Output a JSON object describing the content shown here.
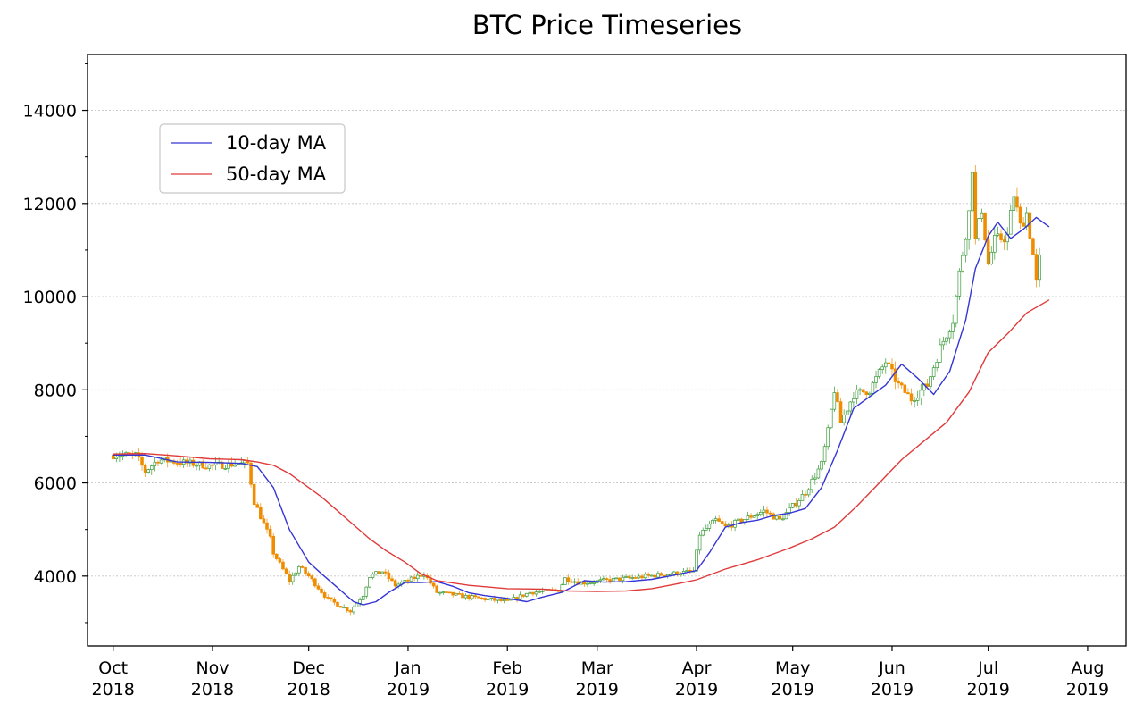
{
  "chart_data": {
    "type": "candlestick",
    "title": "BTC Price Timeseries",
    "xlabel": "",
    "ylabel": "",
    "xlim": [
      "2018-09-23",
      "2019-08-13"
    ],
    "ylim": [
      2500,
      15200
    ],
    "grid": {
      "y": true,
      "x": false
    },
    "legend_position": "upper-left",
    "colors": {
      "up": "#3a9a3a",
      "down": "#f08c00",
      "ma10": "#3535d6",
      "ma50": "#e03a3a"
    },
    "x_ticks": [
      {
        "date": "2018-10-01",
        "label1": "Oct",
        "label2": "2018"
      },
      {
        "date": "2018-11-01",
        "label1": "Nov",
        "label2": "2018"
      },
      {
        "date": "2018-12-01",
        "label1": "Dec",
        "label2": "2018"
      },
      {
        "date": "2019-01-01",
        "label1": "Jan",
        "label2": "2019"
      },
      {
        "date": "2019-02-01",
        "label1": "Feb",
        "label2": "2019"
      },
      {
        "date": "2019-03-01",
        "label1": "Mar",
        "label2": "2019"
      },
      {
        "date": "2019-04-01",
        "label1": "Apr",
        "label2": "2019"
      },
      {
        "date": "2019-05-01",
        "label1": "May",
        "label2": "2019"
      },
      {
        "date": "2019-06-01",
        "label1": "Jun",
        "label2": "2019"
      },
      {
        "date": "2019-07-01",
        "label1": "Jul",
        "label2": "2019"
      },
      {
        "date": "2019-08-01",
        "label1": "Aug",
        "label2": "2019"
      }
    ],
    "y_ticks": [
      {
        "value": 4000,
        "label": "4000"
      },
      {
        "value": 6000,
        "label": "6000"
      },
      {
        "value": 8000,
        "label": "8000"
      },
      {
        "value": 10000,
        "label": "10000"
      },
      {
        "value": 12000,
        "label": "12000"
      },
      {
        "value": 14000,
        "label": "14000"
      }
    ],
    "series": [
      {
        "name": "10-day MA",
        "color": "#3535d6",
        "points": [
          [
            "2018-10-01",
            6600
          ],
          [
            "2018-10-11",
            6600
          ],
          [
            "2018-10-21",
            6450
          ],
          [
            "2018-10-31",
            6440
          ],
          [
            "2018-11-10",
            6420
          ],
          [
            "2018-11-15",
            6350
          ],
          [
            "2018-11-20",
            5900
          ],
          [
            "2018-11-25",
            5000
          ],
          [
            "2018-12-01",
            4300
          ],
          [
            "2018-12-05",
            4050
          ],
          [
            "2018-12-10",
            3750
          ],
          [
            "2018-12-15",
            3450
          ],
          [
            "2018-12-18",
            3380
          ],
          [
            "2018-12-22",
            3450
          ],
          [
            "2018-12-26",
            3650
          ],
          [
            "2018-12-31",
            3860
          ],
          [
            "2019-01-05",
            3860
          ],
          [
            "2019-01-10",
            3880
          ],
          [
            "2019-01-15",
            3780
          ],
          [
            "2019-01-20",
            3640
          ],
          [
            "2019-01-25",
            3580
          ],
          [
            "2019-02-01",
            3520
          ],
          [
            "2019-02-07",
            3450
          ],
          [
            "2019-02-12",
            3550
          ],
          [
            "2019-02-18",
            3650
          ],
          [
            "2019-02-25",
            3900
          ],
          [
            "2019-03-03",
            3870
          ],
          [
            "2019-03-10",
            3880
          ],
          [
            "2019-03-18",
            3930
          ],
          [
            "2019-03-25",
            4020
          ],
          [
            "2019-04-01",
            4120
          ],
          [
            "2019-04-05",
            4500
          ],
          [
            "2019-04-10",
            5050
          ],
          [
            "2019-04-15",
            5150
          ],
          [
            "2019-04-20",
            5200
          ],
          [
            "2019-04-25",
            5300
          ],
          [
            "2019-04-30",
            5350
          ],
          [
            "2019-05-05",
            5450
          ],
          [
            "2019-05-10",
            5900
          ],
          [
            "2019-05-15",
            6700
          ],
          [
            "2019-05-20",
            7600
          ],
          [
            "2019-05-25",
            7850
          ],
          [
            "2019-05-30",
            8100
          ],
          [
            "2019-06-04",
            8550
          ],
          [
            "2019-06-09",
            8250
          ],
          [
            "2019-06-14",
            7900
          ],
          [
            "2019-06-19",
            8400
          ],
          [
            "2019-06-24",
            9500
          ],
          [
            "2019-06-27",
            10600
          ],
          [
            "2019-07-01",
            11300
          ],
          [
            "2019-07-04",
            11600
          ],
          [
            "2019-07-08",
            11250
          ],
          [
            "2019-07-12",
            11450
          ],
          [
            "2019-07-16",
            11700
          ],
          [
            "2019-07-20",
            11500
          ]
        ]
      },
      {
        "name": "50-day MA",
        "color": "#e03a3a",
        "points": [
          [
            "2018-10-01",
            6620
          ],
          [
            "2018-10-11",
            6630
          ],
          [
            "2018-10-21",
            6580
          ],
          [
            "2018-10-31",
            6520
          ],
          [
            "2018-11-10",
            6500
          ],
          [
            "2018-11-15",
            6450
          ],
          [
            "2018-11-20",
            6380
          ],
          [
            "2018-11-25",
            6200
          ],
          [
            "2018-12-01",
            5900
          ],
          [
            "2018-12-05",
            5700
          ],
          [
            "2018-12-10",
            5400
          ],
          [
            "2018-12-15",
            5100
          ],
          [
            "2018-12-20",
            4800
          ],
          [
            "2018-12-25",
            4550
          ],
          [
            "2018-12-31",
            4300
          ],
          [
            "2019-01-05",
            4050
          ],
          [
            "2019-01-10",
            3900
          ],
          [
            "2019-01-20",
            3800
          ],
          [
            "2019-02-01",
            3730
          ],
          [
            "2019-02-12",
            3720
          ],
          [
            "2019-02-20",
            3680
          ],
          [
            "2019-03-01",
            3670
          ],
          [
            "2019-03-10",
            3680
          ],
          [
            "2019-03-18",
            3730
          ],
          [
            "2019-03-25",
            3820
          ],
          [
            "2019-04-01",
            3920
          ],
          [
            "2019-04-10",
            4150
          ],
          [
            "2019-04-20",
            4350
          ],
          [
            "2019-04-30",
            4600
          ],
          [
            "2019-05-07",
            4800
          ],
          [
            "2019-05-14",
            5050
          ],
          [
            "2019-05-21",
            5500
          ],
          [
            "2019-05-28",
            6000
          ],
          [
            "2019-06-04",
            6500
          ],
          [
            "2019-06-11",
            6900
          ],
          [
            "2019-06-18",
            7300
          ],
          [
            "2019-06-25",
            7950
          ],
          [
            "2019-07-01",
            8800
          ],
          [
            "2019-07-07",
            9200
          ],
          [
            "2019-07-13",
            9650
          ],
          [
            "2019-07-20",
            9930
          ]
        ]
      }
    ],
    "candles_segments": [
      [
        "2018-10-01",
        6600
      ],
      [
        "2018-10-08",
        6600
      ],
      [
        "2018-10-11",
        6250
      ],
      [
        "2018-10-15",
        6500
      ],
      [
        "2018-10-31",
        6370
      ],
      [
        "2018-11-12",
        6420
      ],
      [
        "2018-11-14",
        5600
      ],
      [
        "2018-11-19",
        4800
      ],
      [
        "2018-11-20",
        4500
      ],
      [
        "2018-11-25",
        3900
      ],
      [
        "2018-11-28",
        4200
      ],
      [
        "2018-12-01",
        4000
      ],
      [
        "2018-12-07",
        3500
      ],
      [
        "2018-12-14",
        3250
      ],
      [
        "2018-12-18",
        3600
      ],
      [
        "2018-12-20",
        4000
      ],
      [
        "2018-12-24",
        4100
      ],
      [
        "2018-12-28",
        3800
      ],
      [
        "2019-01-01",
        3900
      ],
      [
        "2019-01-06",
        4050
      ],
      [
        "2019-01-10",
        3650
      ],
      [
        "2019-01-20",
        3550
      ],
      [
        "2019-02-01",
        3450
      ],
      [
        "2019-02-08",
        3650
      ],
      [
        "2019-02-17",
        3700
      ],
      [
        "2019-02-19",
        3950
      ],
      [
        "2019-02-24",
        3850
      ],
      [
        "2019-03-10",
        3950
      ],
      [
        "2019-03-31",
        4100
      ],
      [
        "2019-04-02",
        4900
      ],
      [
        "2019-04-07",
        5200
      ],
      [
        "2019-04-10",
        5050
      ],
      [
        "2019-04-22",
        5400
      ],
      [
        "2019-04-27",
        5200
      ],
      [
        "2019-05-05",
        5800
      ],
      [
        "2019-05-10",
        6400
      ],
      [
        "2019-05-12",
        7100
      ],
      [
        "2019-05-14",
        8000
      ],
      [
        "2019-05-16",
        7300
      ],
      [
        "2019-05-20",
        7900
      ],
      [
        "2019-05-25",
        8000
      ],
      [
        "2019-05-30",
        8600
      ],
      [
        "2019-06-03",
        8100
      ],
      [
        "2019-06-07",
        7800
      ],
      [
        "2019-06-12",
        8100
      ],
      [
        "2019-06-16",
        8900
      ],
      [
        "2019-06-20",
        9500
      ],
      [
        "2019-06-22",
        10500
      ],
      [
        "2019-06-25",
        11800
      ],
      [
        "2019-06-26",
        12800
      ],
      [
        "2019-06-27",
        11200
      ],
      [
        "2019-06-29",
        11900
      ],
      [
        "2019-07-01",
        10700
      ],
      [
        "2019-07-03",
        11200
      ],
      [
        "2019-07-07",
        11300
      ],
      [
        "2019-07-09",
        12200
      ],
      [
        "2019-07-11",
        11500
      ],
      [
        "2019-07-13",
        11800
      ],
      [
        "2019-07-15",
        10900
      ],
      [
        "2019-07-16",
        10300
      ],
      [
        "2019-07-17",
        10800
      ]
    ]
  }
}
